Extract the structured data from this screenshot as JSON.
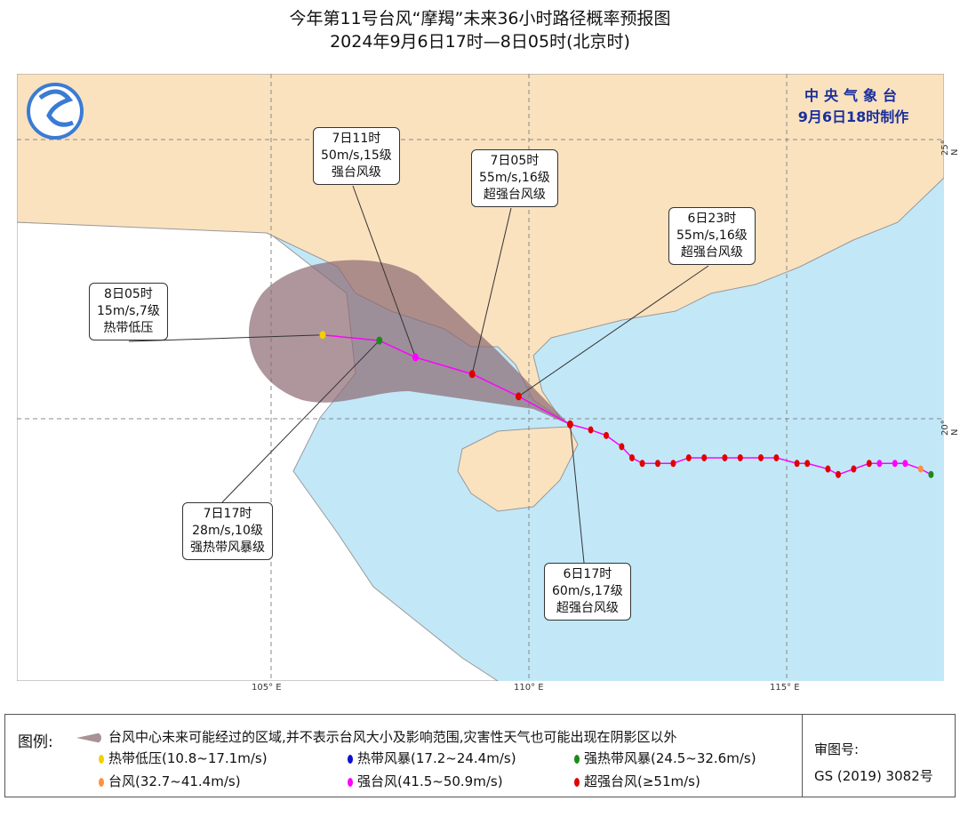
{
  "title": "今年第11号台风“摩羯”未来36小时路径概率预报图",
  "subtitle": "2024年9月6日17时—8日05时(北京时)",
  "issuer": {
    "name": "中央气象台",
    "issued": "9月6日18时制作"
  },
  "axes": {
    "lon_ticks": [
      "105° E",
      "110° E",
      "115° E"
    ],
    "lat_ticks": [
      "25° N",
      "20° N"
    ]
  },
  "colors": {
    "sea": "#c2e8f8",
    "china": "#fae2bf",
    "other_land": "#ffffff",
    "cone": "#8c6a72",
    "track": "#ff00ff"
  },
  "forecast_labels": [
    {
      "time": "8日05时",
      "wind": "15m/s,7级",
      "grade": "热带低压",
      "lon": 106.0,
      "lat": 21.5,
      "color": "#f2d000"
    },
    {
      "time": "7日17时",
      "wind": "28m/s,10级",
      "grade": "强热带风暴级",
      "lon": 107.1,
      "lat": 21.4,
      "color": "#1a8a1a"
    },
    {
      "time": "7日11时",
      "wind": "50m/s,15级",
      "grade": "强台风级",
      "lon": 107.8,
      "lat": 21.1,
      "color": "#ff00ff"
    },
    {
      "time": "7日05时",
      "wind": "55m/s,16级",
      "grade": "超强台风级",
      "lon": 108.9,
      "lat": 20.8,
      "color": "#e00000"
    },
    {
      "time": "6日23时",
      "wind": "55m/s,16级",
      "grade": "超强台风级",
      "lon": 109.8,
      "lat": 20.4,
      "color": "#e00000"
    },
    {
      "time": "6日17时",
      "wind": "60m/s,17级",
      "grade": "超强台风级",
      "lon": 110.8,
      "lat": 19.9,
      "color": "#e00000"
    }
  ],
  "past_track": [
    [
      117.8,
      19.0,
      "green"
    ],
    [
      117.6,
      19.1,
      "orange"
    ],
    [
      117.3,
      19.2,
      "magenta"
    ],
    [
      117.1,
      19.2,
      "magenta"
    ],
    [
      116.8,
      19.2,
      "magenta"
    ],
    [
      116.6,
      19.2,
      "red"
    ],
    [
      116.3,
      19.1,
      "red"
    ],
    [
      116.0,
      19.0,
      "red"
    ],
    [
      115.8,
      19.1,
      "red"
    ],
    [
      115.4,
      19.2,
      "red"
    ],
    [
      115.2,
      19.2,
      "red"
    ],
    [
      114.8,
      19.3,
      "red"
    ],
    [
      114.5,
      19.3,
      "red"
    ],
    [
      114.1,
      19.3,
      "red"
    ],
    [
      113.8,
      19.3,
      "red"
    ],
    [
      113.4,
      19.3,
      "red"
    ],
    [
      113.1,
      19.3,
      "red"
    ],
    [
      112.8,
      19.2,
      "red"
    ],
    [
      112.5,
      19.2,
      "red"
    ],
    [
      112.2,
      19.2,
      "red"
    ],
    [
      112.0,
      19.3,
      "red"
    ],
    [
      111.8,
      19.5,
      "red"
    ],
    [
      111.5,
      19.7,
      "red"
    ],
    [
      111.2,
      19.8,
      "red"
    ],
    [
      110.8,
      19.9,
      "red"
    ]
  ],
  "legend": {
    "title": "图例:",
    "cone": "台风中心未来可能经过的区域,并不表示台风大小及影响范围,灾害性天气也可能出现在阴影区以外",
    "items": [
      {
        "label": "热带低压(10.8~17.1m/s)",
        "color": "#f2d000"
      },
      {
        "label": "热带风暴(17.2~24.4m/s)",
        "color": "#1010d0"
      },
      {
        "label": "强热带风暴(24.5~32.6m/s)",
        "color": "#1a8a1a"
      },
      {
        "label": "台风(32.7~41.4m/s)",
        "color": "#ff9040"
      },
      {
        "label": "强台风(41.5~50.9m/s)",
        "color": "#ff00ff"
      },
      {
        "label": "超强台风(≥51m/s)",
        "color": "#e00000"
      }
    ],
    "approval_label": "审图号:",
    "approval_no": "GS (2019) 3082号"
  }
}
